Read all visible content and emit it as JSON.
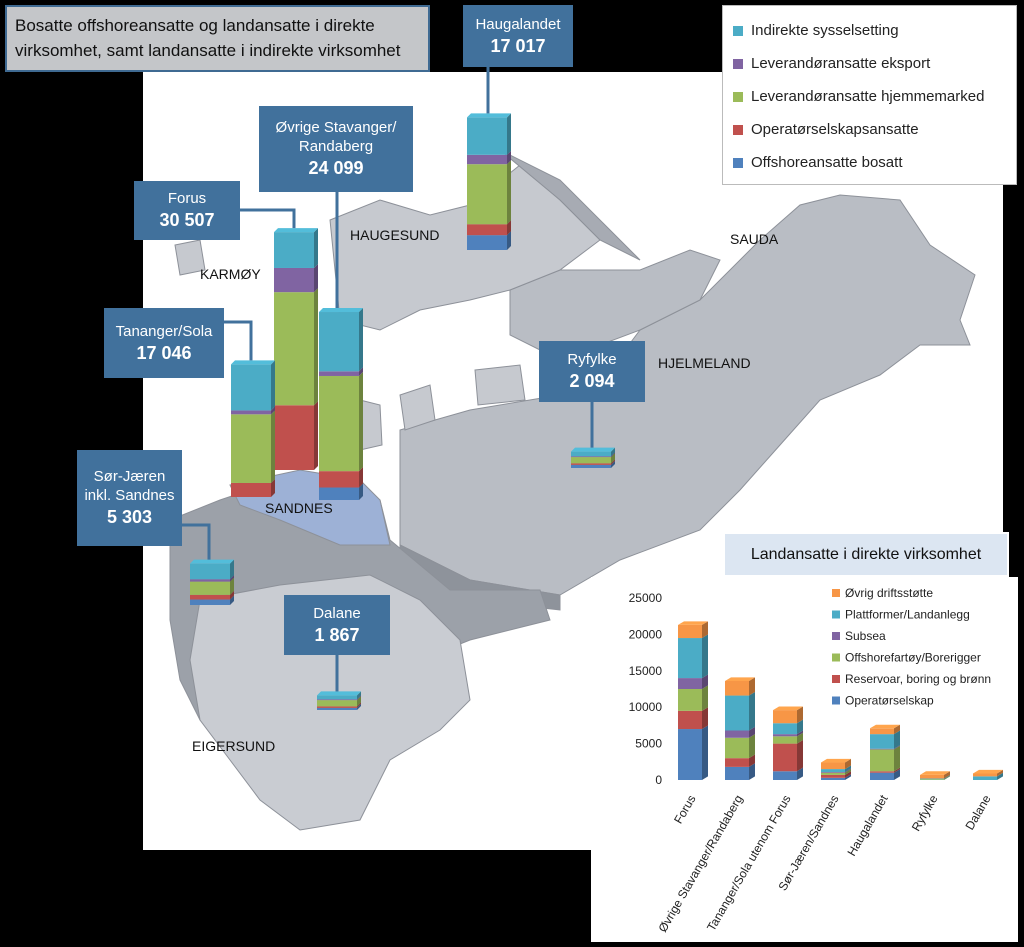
{
  "chart_data": [
    {
      "type": "map-bar",
      "title": "Bosatte offshoreansatte og landansatte i direkte virksomhet, samt landansatte i indirekte virksomhet",
      "categories": [
        "Haugalandet",
        "Øvrige Stavanger/ Randaberg",
        "Forus",
        "Tananger/Sola",
        "Sør-Jæren inkl. Sandnes",
        "Ryfylke",
        "Dalane"
      ],
      "values": [
        17017,
        24099,
        30507,
        17046,
        5303,
        2094,
        1867
      ],
      "value_labels": [
        "17 017",
        "24 099",
        "30 507",
        "17 046",
        "5 303",
        "2 094",
        "1 867"
      ],
      "series": [
        {
          "name": "Indirekte sysselsetting",
          "color": "#4bacc6",
          "values": [
            4800,
            7600,
            4600,
            5900,
            2000,
            600,
            500
          ]
        },
        {
          "name": "Leverandøransatte eksport",
          "color": "#8064a2",
          "values": [
            1200,
            600,
            3100,
            500,
            300,
            100,
            100
          ]
        },
        {
          "name": "Leverandøransatte hjemmemarked",
          "color": "#9bbb59",
          "values": [
            7700,
            12200,
            14500,
            8800,
            1700,
            800,
            800
          ]
        },
        {
          "name": "Operatørselskapsansatte",
          "color": "#c0504d",
          "values": [
            1400,
            2100,
            8300,
            1800,
            600,
            200,
            200
          ]
        },
        {
          "name": "Offshoreansatte bosatt",
          "color": "#4f81bd",
          "values": [
            1900,
            1600,
            0,
            0,
            700,
            400,
            267
          ]
        }
      ],
      "annotations": [
        "HAUGESUND",
        "KARMØY",
        "SAUDA",
        "HJELMELAND",
        "SANDNES",
        "EIGERSUND"
      ]
    },
    {
      "type": "bar",
      "title": "Landansatte i direkte virksomhet",
      "categories": [
        "Forus",
        "Øvrige Stavanger/Randaberg",
        "Tananger/Sola utenom Forus",
        "Sør-Jæren/Sandnes",
        "Haugalandet",
        "Ryfylke",
        "Dalane"
      ],
      "stacked": true,
      "ylim": [
        0,
        25000
      ],
      "yticks": [
        0,
        5000,
        10000,
        15000,
        20000,
        25000
      ],
      "series": [
        {
          "name": "Øvrig driftsstøtte",
          "color": "#f79646",
          "values": [
            1800,
            2000,
            1800,
            900,
            800,
            500,
            400
          ]
        },
        {
          "name": "Plattformer/Landanlegg",
          "color": "#4bacc6",
          "values": [
            5500,
            4800,
            1500,
            400,
            2000,
            100,
            500
          ]
        },
        {
          "name": "Subsea",
          "color": "#8064a2",
          "values": [
            1500,
            1000,
            300,
            100,
            100,
            0,
            0
          ]
        },
        {
          "name": "Offshorefartøy/Borerigger",
          "color": "#9bbb59",
          "values": [
            3000,
            2800,
            1000,
            300,
            3000,
            100,
            0
          ]
        },
        {
          "name": "Reservoar, boring og brønn",
          "color": "#c0504d",
          "values": [
            2500,
            1200,
            3800,
            400,
            200,
            0,
            0
          ]
        },
        {
          "name": "Operatørselskap",
          "color": "#4f81bd",
          "values": [
            7000,
            1800,
            1200,
            300,
            1000,
            0,
            0
          ]
        }
      ]
    }
  ]
}
